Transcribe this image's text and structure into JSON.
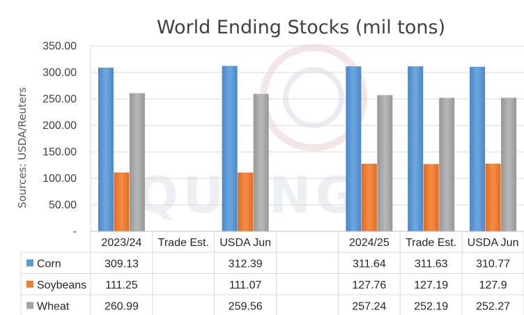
{
  "chart_data": {
    "type": "bar",
    "title": "World Ending Stocks (mil tons)",
    "ylabel": "Sources: USDA/Reuters",
    "xlabel": "",
    "ylim": [
      0,
      350
    ],
    "ytick_labels": [
      "-",
      "50.00",
      "100.00",
      "150.00",
      "200.00",
      "250.00",
      "300.00",
      "350.00"
    ],
    "categories": [
      "2023/24",
      "Trade Est.",
      "USDA Jun",
      "",
      "2024/25",
      "Trade Est.",
      "USDA Jun"
    ],
    "series": [
      {
        "name": "Corn",
        "values": [
          309.13,
          null,
          312.39,
          null,
          311.64,
          311.63,
          310.77
        ],
        "labels": [
          "309.13",
          "",
          "312.39",
          "",
          "311.64",
          "311.63",
          "310.77"
        ],
        "color": "#5b9bd5"
      },
      {
        "name": "Soybeans",
        "values": [
          111.25,
          null,
          111.07,
          null,
          127.76,
          127.19,
          127.9
        ],
        "labels": [
          "111.25",
          "",
          "111.07",
          "",
          "127.76",
          "127.19",
          "127.9"
        ],
        "color": "#ed7d31"
      },
      {
        "name": "Wheat",
        "values": [
          260.99,
          null,
          259.56,
          null,
          257.24,
          252.19,
          252.27
        ],
        "labels": [
          "260.99",
          "",
          "259.56",
          "",
          "257.24",
          "252.19",
          "252.27"
        ],
        "color": "#a5a5a5"
      }
    ],
    "grid": true,
    "legend": "data table",
    "watermark": "QUANG"
  }
}
